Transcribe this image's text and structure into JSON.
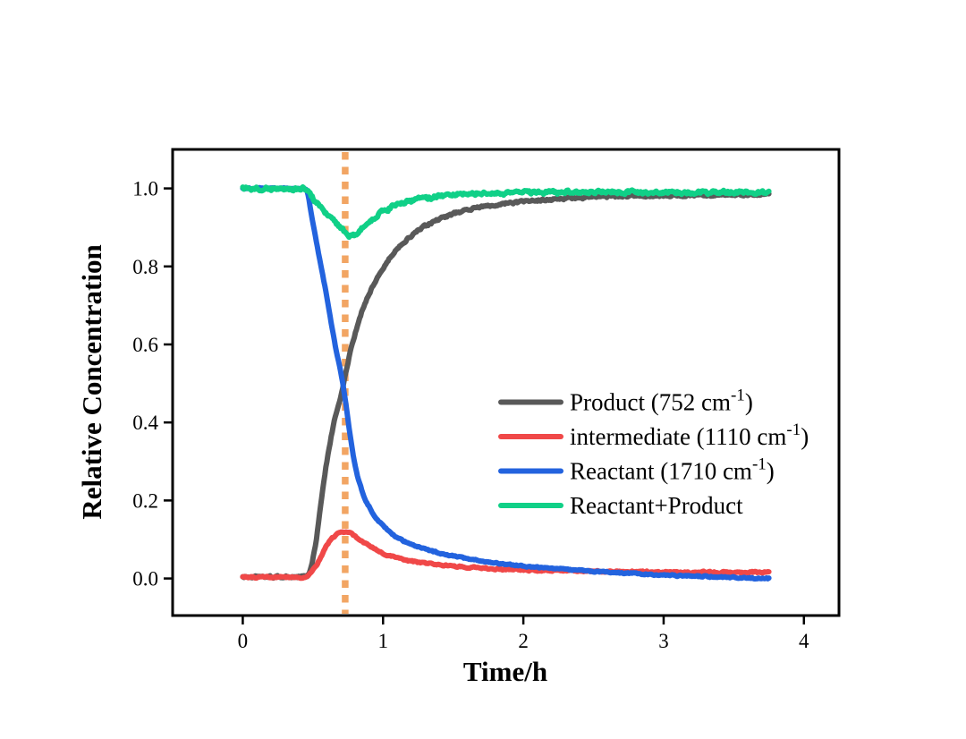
{
  "page": {
    "background": "#ffffff"
  },
  "chart_data": {
    "type": "line",
    "title": "",
    "xlabel": "Time/h",
    "ylabel": "Relative Concentration",
    "xlim": [
      -0.5,
      4.25
    ],
    "ylim": [
      -0.095,
      1.1
    ],
    "x_ticks": {
      "values": [
        0,
        1,
        2,
        3,
        4
      ],
      "labels": [
        "0",
        "1",
        "2",
        "3",
        "4"
      ]
    },
    "y_ticks": {
      "values": [
        0.0,
        0.2,
        0.4,
        0.6,
        0.8,
        1.0
      ],
      "labels": [
        "0.0",
        "0.2",
        "0.4",
        "0.6",
        "0.8",
        "1.0"
      ]
    },
    "grid": false,
    "axis_color": "#000000",
    "legend": {
      "frame": false,
      "position": "center-right"
    },
    "vline": {
      "x": 0.73,
      "color": "#F2A563",
      "style": "dashed"
    },
    "series": [
      {
        "id": "product",
        "name": "Product (752 cm-1)",
        "legend_pre": "Product (752 cm",
        "legend_sup": "-1",
        "legend_post": ")",
        "color": "#595959",
        "noise": 0.005,
        "points": [
          [
            0,
            0.004
          ],
          [
            0.1,
            0.004
          ],
          [
            0.2,
            0.004
          ],
          [
            0.3,
            0.004
          ],
          [
            0.4,
            0.004
          ],
          [
            0.45,
            0.005
          ],
          [
            0.48,
            0.02
          ],
          [
            0.52,
            0.09
          ],
          [
            0.56,
            0.2
          ],
          [
            0.6,
            0.3
          ],
          [
            0.65,
            0.4
          ],
          [
            0.7,
            0.47
          ],
          [
            0.73,
            0.52
          ],
          [
            0.76,
            0.57
          ],
          [
            0.8,
            0.625
          ],
          [
            0.85,
            0.685
          ],
          [
            0.9,
            0.73
          ],
          [
            0.95,
            0.765
          ],
          [
            1.0,
            0.795
          ],
          [
            1.1,
            0.845
          ],
          [
            1.2,
            0.878
          ],
          [
            1.3,
            0.903
          ],
          [
            1.45,
            0.928
          ],
          [
            1.6,
            0.945
          ],
          [
            1.8,
            0.958
          ],
          [
            2.0,
            0.966
          ],
          [
            2.3,
            0.974
          ],
          [
            2.6,
            0.979
          ],
          [
            3.0,
            0.982
          ],
          [
            3.4,
            0.984
          ],
          [
            3.75,
            0.985
          ]
        ]
      },
      {
        "id": "intermediate",
        "name": "intermediate (1110 cm-1)",
        "legend_pre": "intermediate (1110 cm",
        "legend_sup": "-1",
        "legend_post": ")",
        "color": "#F04848",
        "noise": 0.0035,
        "points": [
          [
            0,
            0.003
          ],
          [
            0.1,
            0.003
          ],
          [
            0.2,
            0.003
          ],
          [
            0.3,
            0.003
          ],
          [
            0.4,
            0.003
          ],
          [
            0.45,
            0.004
          ],
          [
            0.5,
            0.02
          ],
          [
            0.55,
            0.05
          ],
          [
            0.6,
            0.085
          ],
          [
            0.65,
            0.107
          ],
          [
            0.7,
            0.118
          ],
          [
            0.74,
            0.12
          ],
          [
            0.78,
            0.114
          ],
          [
            0.82,
            0.104
          ],
          [
            0.87,
            0.092
          ],
          [
            0.92,
            0.08
          ],
          [
            0.97,
            0.07
          ],
          [
            1.05,
            0.058
          ],
          [
            1.15,
            0.048
          ],
          [
            1.3,
            0.039
          ],
          [
            1.45,
            0.033
          ],
          [
            1.6,
            0.029
          ],
          [
            1.8,
            0.025
          ],
          [
            2.0,
            0.022
          ],
          [
            2.3,
            0.02
          ],
          [
            2.6,
            0.018
          ],
          [
            2.9,
            0.017
          ],
          [
            3.2,
            0.016
          ],
          [
            3.5,
            0.016
          ],
          [
            3.75,
            0.016
          ]
        ]
      },
      {
        "id": "reactant",
        "name": "Reactant (1710 cm-1)",
        "legend_pre": "Reactant (1710 cm",
        "legend_sup": "-1",
        "legend_post": ")",
        "color": "#2363DE",
        "noise": 0.003,
        "points": [
          [
            0,
            1.0
          ],
          [
            0.1,
            1.0
          ],
          [
            0.2,
            1.0
          ],
          [
            0.3,
            1.0
          ],
          [
            0.4,
            1.0
          ],
          [
            0.45,
            0.998
          ],
          [
            0.5,
            0.91
          ],
          [
            0.55,
            0.815
          ],
          [
            0.6,
            0.72
          ],
          [
            0.65,
            0.615
          ],
          [
            0.7,
            0.525
          ],
          [
            0.73,
            0.46
          ],
          [
            0.76,
            0.38
          ],
          [
            0.79,
            0.31
          ],
          [
            0.82,
            0.26
          ],
          [
            0.86,
            0.215
          ],
          [
            0.9,
            0.185
          ],
          [
            0.95,
            0.155
          ],
          [
            1.0,
            0.135
          ],
          [
            1.1,
            0.105
          ],
          [
            1.2,
            0.088
          ],
          [
            1.35,
            0.07
          ],
          [
            1.5,
            0.058
          ],
          [
            1.7,
            0.045
          ],
          [
            1.9,
            0.036
          ],
          [
            2.1,
            0.029
          ],
          [
            2.4,
            0.021
          ],
          [
            2.7,
            0.014
          ],
          [
            3.0,
            0.009
          ],
          [
            3.3,
            0.005
          ],
          [
            3.55,
            0.002
          ],
          [
            3.75,
            0.0
          ]
        ]
      },
      {
        "id": "reactant-plus-product",
        "name": "Reactant+Product",
        "legend_pre": "Reactant+Product",
        "legend_sup": "",
        "legend_post": "",
        "color": "#10D087",
        "noise": 0.008,
        "points": [
          [
            0,
            1.0
          ],
          [
            0.1,
            0.999
          ],
          [
            0.2,
            1.0
          ],
          [
            0.3,
            0.999
          ],
          [
            0.4,
            1.0
          ],
          [
            0.45,
            0.998
          ],
          [
            0.5,
            0.975
          ],
          [
            0.55,
            0.955
          ],
          [
            0.6,
            0.935
          ],
          [
            0.65,
            0.915
          ],
          [
            0.7,
            0.898
          ],
          [
            0.74,
            0.885
          ],
          [
            0.78,
            0.878
          ],
          [
            0.82,
            0.885
          ],
          [
            0.87,
            0.905
          ],
          [
            0.92,
            0.921
          ],
          [
            0.97,
            0.934
          ],
          [
            1.05,
            0.95
          ],
          [
            1.15,
            0.963
          ],
          [
            1.25,
            0.971
          ],
          [
            1.4,
            0.979
          ],
          [
            1.55,
            0.984
          ],
          [
            1.7,
            0.987
          ],
          [
            1.9,
            0.989
          ],
          [
            2.1,
            0.99
          ],
          [
            2.4,
            0.99
          ],
          [
            2.7,
            0.99
          ],
          [
            3.0,
            0.99
          ],
          [
            3.3,
            0.99
          ],
          [
            3.55,
            0.989
          ],
          [
            3.75,
            0.989
          ]
        ]
      }
    ]
  }
}
